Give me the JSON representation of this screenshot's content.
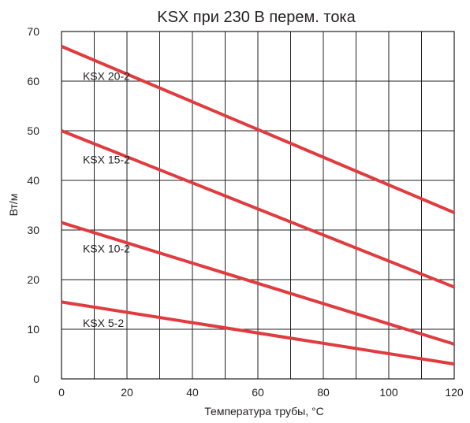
{
  "chart_data": {
    "type": "line",
    "title": "KSX при 230 В перем. тока",
    "xlabel": "Температура трубы, °C",
    "ylabel": "Вт/м",
    "xlim": [
      0,
      120
    ],
    "ylim": [
      0,
      70
    ],
    "xticks": [
      "0",
      "20",
      "40",
      "60",
      "80",
      "100",
      "120"
    ],
    "yticks": [
      "0",
      "10",
      "20",
      "30",
      "40",
      "50",
      "60",
      "70"
    ],
    "grid": true,
    "line_color": "#e03c3f",
    "series": [
      {
        "name": "KSX 20-2",
        "x": [
          0,
          120
        ],
        "y": [
          67,
          33.5
        ]
      },
      {
        "name": "KSX 15-2",
        "x": [
          0,
          120
        ],
        "y": [
          50,
          18.5
        ]
      },
      {
        "name": "KSX 10-2",
        "x": [
          0,
          120
        ],
        "y": [
          31.5,
          7
        ]
      },
      {
        "name": "KSX 5-2",
        "x": [
          0,
          120
        ],
        "y": [
          15.5,
          3
        ]
      }
    ]
  }
}
